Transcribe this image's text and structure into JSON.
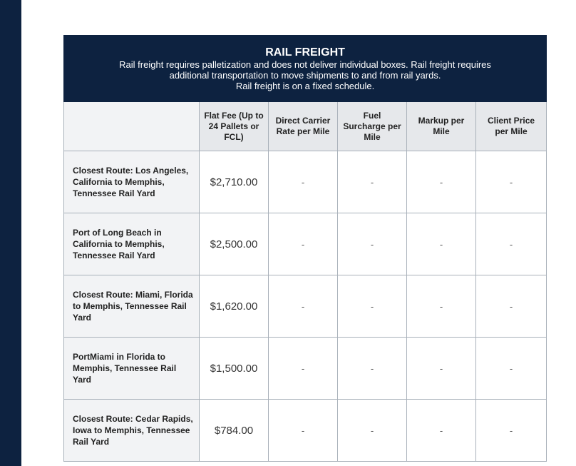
{
  "table": {
    "title": "RAIL FREIGHT",
    "description": [
      "Rail freight requires palletization and does not deliver individual boxes. Rail freight requires",
      "additional transportation to move shipments to and from rail yards.",
      "Rail freight is on a fixed schedule."
    ],
    "columns": [
      "",
      "Flat Fee (Up to 24 Pallets or FCL)",
      "Direct Carrier Rate per Mile",
      "Fuel Surcharge per Mile",
      "Markup per Mile",
      "Client Price per Mile"
    ],
    "rows": [
      {
        "route": "Closest Route: Los Angeles, California to Memphis, Tennessee Rail Yard",
        "flat_fee": "$2,710.00",
        "direct": "-",
        "fuel": "-",
        "markup": "-",
        "client": "-"
      },
      {
        "route": "Port of Long Beach in California to Memphis, Tennessee Rail Yard",
        "flat_fee": "$2,500.00",
        "direct": "-",
        "fuel": "-",
        "markup": "-",
        "client": "-"
      },
      {
        "route": "Closest Route: Miami, Florida to Memphis, Tennessee Rail Yard",
        "flat_fee": "$1,620.00",
        "direct": "-",
        "fuel": "-",
        "markup": "-",
        "client": "-"
      },
      {
        "route": "PortMiami in Florida to Memphis, Tennessee Rail Yard",
        "flat_fee": "$1,500.00",
        "direct": "-",
        "fuel": "-",
        "markup": "-",
        "client": "-"
      },
      {
        "route": "Closest Route: Cedar Rapids, Iowa to Memphis, Tennessee Rail Yard",
        "flat_fee": "$784.00",
        "direct": "-",
        "fuel": "-",
        "markup": "-",
        "client": "-"
      }
    ]
  },
  "colors": {
    "navy": "#0d2240",
    "header_gray": "#e6e8eb"
  }
}
